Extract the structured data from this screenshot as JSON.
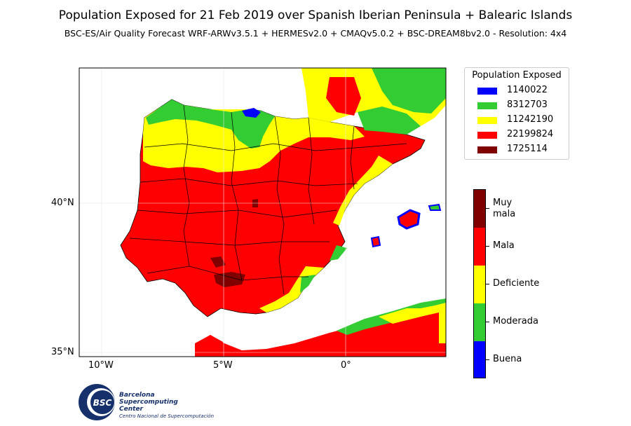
{
  "title": "Population Exposed for 21 Feb 2019 over Spanish Iberian Peninsula + Balearic Islands",
  "subtitle": "BSC-ES/Air Quality Forecast WRF-ARWv3.5.1 + HERMESv2.0 + CMAQv5.0.2 + BSC-DREAM8bv2.0 - Resolution: 4x4",
  "axes": {
    "lat_ticks": [
      "40°N",
      "35°N"
    ],
    "lon_ticks": [
      "10°W",
      "5°W",
      "0°"
    ]
  },
  "legend": {
    "title": "Population Exposed",
    "items": [
      {
        "label": "1140022",
        "color": "#0000ff"
      },
      {
        "label": "8312703",
        "color": "#33cc33"
      },
      {
        "label": "11242190",
        "color": "#ffff00"
      },
      {
        "label": "22199824",
        "color": "#ff0000"
      },
      {
        "label": "1725114",
        "color": "#800000"
      }
    ]
  },
  "colorbar": {
    "categories": [
      {
        "label": "Buena",
        "color": "#0000ff"
      },
      {
        "label": "Moderada",
        "color": "#33cc33"
      },
      {
        "label": "Deficiente",
        "color": "#ffff00"
      },
      {
        "label": "Mala",
        "color": "#ff0000"
      },
      {
        "label": "Muy mala",
        "color": "#800000"
      }
    ]
  },
  "logo": {
    "line1": "Barcelona",
    "line2": "Supercomputing",
    "line3": "Center",
    "sub": "Centro Nacional de Supercomputación",
    "emblem": "BSC"
  }
}
